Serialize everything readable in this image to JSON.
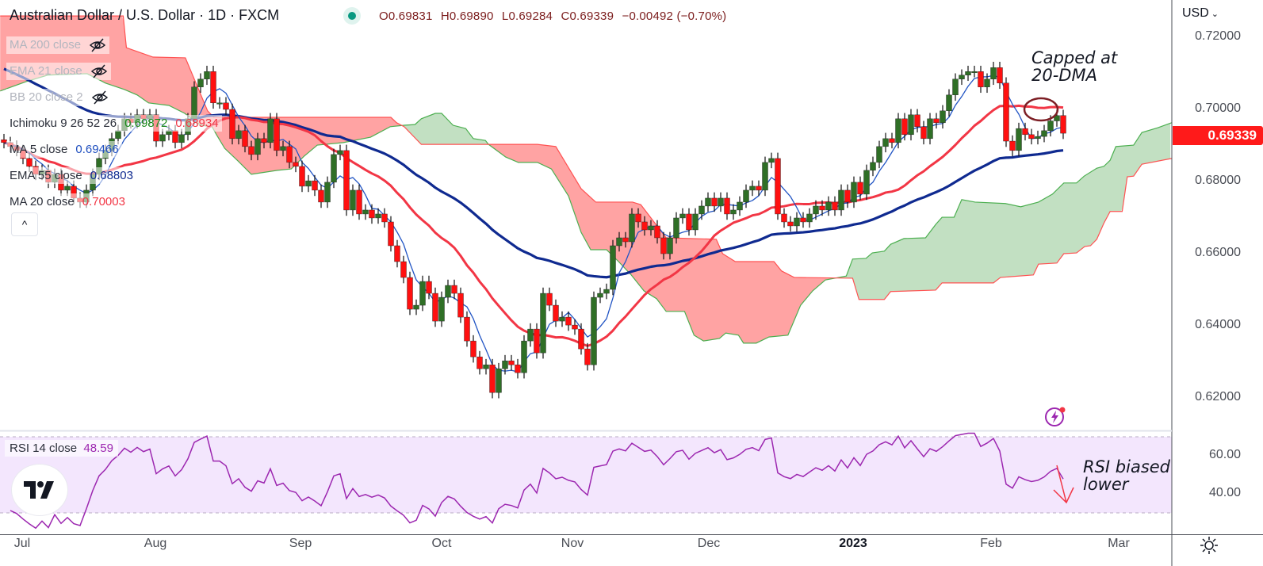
{
  "header": {
    "symbol_title": "Australian Dollar / U.S. Dollar · 1D · FXCM",
    "ohlc": [
      {
        "label": "O",
        "value": "0.69831"
      },
      {
        "label": "H",
        "value": "0.69890"
      },
      {
        "label": "L",
        "value": "0.69284"
      },
      {
        "label": "C",
        "value": "0.69339"
      }
    ],
    "change": "−0.00492 (−0.70%)"
  },
  "legend": {
    "hidden": [
      {
        "label": "MA 200 close",
        "icon": "eye-off-icon"
      },
      {
        "label": "EMA 21 close",
        "icon": "eye-off-icon"
      },
      {
        "label": "BB 20 close 2",
        "icon": "eye-off-icon"
      }
    ],
    "ichimoku": {
      "label": "Ichimoku 9 26 52 26",
      "value1": "0.69872",
      "value2": "0.68934"
    },
    "ma5": {
      "label": "MA 5 close",
      "value": "0.69466"
    },
    "ema55": {
      "label": "EMA 55 close",
      "value": "0.68803"
    },
    "ma20": {
      "label": "MA 20 close",
      "value": "0.70003"
    },
    "collapse": "^"
  },
  "price_axis": {
    "currency": "USD",
    "ticks": [
      "0.72000",
      "0.70000",
      "0.68000",
      "0.66000",
      "0.64000",
      "0.62000"
    ],
    "last_price": "0.69339"
  },
  "rsi": {
    "label": "RSI 14 close",
    "value": "48.59",
    "ticks": [
      "60.00",
      "40.00"
    ]
  },
  "time_axis": [
    "Jul",
    "Aug",
    "Sep",
    "Oct",
    "Nov",
    "Dec",
    "2023",
    "Feb",
    "Mar"
  ],
  "annotations": {
    "capped": [
      "Capped at",
      "20-DMA"
    ],
    "rsi_note": [
      "RSI biased",
      "lower"
    ]
  },
  "colors": {
    "up": "#2f6f26",
    "down": "#ff1010",
    "ma5": "#2255c4",
    "ma20": "#f23645",
    "ema55": "#0f2a90",
    "rsi": "#9c27b0",
    "cloud_green": "#c2e0c2",
    "cloud_red": "#ffa3a3",
    "span_a": "#4caf50",
    "span_b": "#ff5252"
  },
  "chart_data": {
    "type": "candlestick",
    "title": "Australian Dollar / U.S. Dollar · 1D · FXCM",
    "ylim": [
      0.611,
      0.7303
    ],
    "yticks": [
      0.72,
      0.7,
      0.68,
      0.66,
      0.64,
      0.62
    ],
    "x_labels": [
      "Jul",
      "Aug",
      "Sep",
      "Oct",
      "Nov",
      "Dec",
      "2023",
      "Feb",
      "Mar"
    ],
    "ema55_seed": 0.712,
    "closes": [
      0.6908,
      0.6897,
      0.6886,
      0.6864,
      0.6842,
      0.682,
      0.6831,
      0.6798,
      0.682,
      0.6776,
      0.6787,
      0.6754,
      0.6743,
      0.6776,
      0.682,
      0.6864,
      0.6886,
      0.6919,
      0.6941,
      0.6974,
      0.6963,
      0.6985,
      0.6974,
      0.6985,
      0.6912,
      0.693,
      0.6941,
      0.6908,
      0.693,
      0.6974,
      0.7062,
      0.7084,
      0.7105,
      0.7018,
      0.7018,
      0.7,
      0.6919,
      0.6941,
      0.6897,
      0.6875,
      0.6919,
      0.6908,
      0.6974,
      0.6886,
      0.6897,
      0.6853,
      0.6842,
      0.6787,
      0.6802,
      0.6776,
      0.6743,
      0.6798,
      0.6875,
      0.6886,
      0.6721,
      0.6776,
      0.671,
      0.6721,
      0.6699,
      0.671,
      0.6688,
      0.6622,
      0.6578,
      0.6534,
      0.6446,
      0.6457,
      0.6523,
      0.649,
      0.6413,
      0.6479,
      0.6512,
      0.649,
      0.6424,
      0.6358,
      0.6314,
      0.6281,
      0.6292,
      0.6215,
      0.6281,
      0.6303,
      0.6292,
      0.627,
      0.6358,
      0.6391,
      0.6325,
      0.649,
      0.6457,
      0.6413,
      0.6424,
      0.6402,
      0.6391,
      0.6336,
      0.6292,
      0.6479,
      0.649,
      0.6501,
      0.6622,
      0.6644,
      0.6633,
      0.671,
      0.6688,
      0.6666,
      0.6677,
      0.6644,
      0.66,
      0.6644,
      0.6699,
      0.671,
      0.6666,
      0.671,
      0.6732,
      0.6754,
      0.6732,
      0.6754,
      0.671,
      0.6721,
      0.6743,
      0.6776,
      0.6787,
      0.6776,
      0.6853,
      0.6864,
      0.671,
      0.6688,
      0.6677,
      0.6699,
      0.6688,
      0.671,
      0.6732,
      0.6721,
      0.6743,
      0.6721,
      0.6776,
      0.6743,
      0.6798,
      0.6765,
      0.6831,
      0.6853,
      0.6897,
      0.6919,
      0.6908,
      0.6974,
      0.693,
      0.6985,
      0.6952,
      0.6919,
      0.6974,
      0.6963,
      0.6996,
      0.704,
      0.7084,
      0.7095,
      0.7105,
      0.7105,
      0.7062,
      0.7084,
      0.7116,
      0.7073,
      0.6912,
      0.6886,
      0.6947,
      0.693,
      0.6919,
      0.6925,
      0.6941,
      0.6968,
      0.6983,
      0.69339
    ],
    "ichimoku_span_a": [
      [
        -0.6,
        0.7051
      ],
      [
        3.5,
        0.7077
      ],
      [
        6.9,
        0.7095
      ],
      [
        13.1,
        0.7099
      ],
      [
        16,
        0.7073
      ],
      [
        19,
        0.7055
      ],
      [
        21,
        0.704
      ],
      [
        22.8,
        0.7018
      ],
      [
        26,
        0.7011
      ],
      [
        28.5,
        0.6989
      ],
      [
        31,
        0.6956
      ],
      [
        32.8,
        0.6952
      ],
      [
        33.5,
        0.693
      ],
      [
        34.8,
        0.6892
      ],
      [
        36.9,
        0.6857
      ],
      [
        39,
        0.682
      ],
      [
        43.1,
        0.6831
      ],
      [
        45.3,
        0.6835
      ],
      [
        47.3,
        0.687
      ],
      [
        49.4,
        0.6901
      ],
      [
        53.5,
        0.6908
      ],
      [
        57.8,
        0.6923
      ],
      [
        60.9,
        0.6952
      ],
      [
        63.1,
        0.6956
      ],
      [
        64.8,
        0.6958
      ],
      [
        65.8,
        0.6974
      ],
      [
        68,
        0.6989
      ],
      [
        69,
        0.6989
      ],
      [
        70.8,
        0.6956
      ],
      [
        72.8,
        0.6947
      ],
      [
        74,
        0.6919
      ],
      [
        75.9,
        0.6914
      ],
      [
        76.4,
        0.6903
      ],
      [
        79.1,
        0.6868
      ],
      [
        81.1,
        0.6853
      ],
      [
        84.1,
        0.6853
      ],
      [
        86.3,
        0.6835
      ],
      [
        89,
        0.676
      ],
      [
        91,
        0.6659
      ],
      [
        92.5,
        0.6611
      ],
      [
        95,
        0.6611
      ],
      [
        96.9,
        0.6578
      ],
      [
        98.9,
        0.6541
      ],
      [
        100.9,
        0.6497
      ],
      [
        102.9,
        0.6475
      ],
      [
        104.4,
        0.644
      ],
      [
        107.3,
        0.644
      ],
      [
        108.8,
        0.6374
      ],
      [
        110.3,
        0.6358
      ],
      [
        112.8,
        0.6365
      ],
      [
        113.8,
        0.638
      ],
      [
        115.8,
        0.6374
      ],
      [
        116.6,
        0.6352
      ],
      [
        118.6,
        0.6352
      ],
      [
        120.6,
        0.6369
      ],
      [
        123.6,
        0.6374
      ],
      [
        125.6,
        0.6457
      ],
      [
        127.5,
        0.6497
      ],
      [
        129.5,
        0.6527
      ],
      [
        132.8,
        0.6538
      ],
      [
        133.8,
        0.6585
      ],
      [
        135.9,
        0.6587
      ],
      [
        136.9,
        0.6602
      ],
      [
        138.8,
        0.6607
      ],
      [
        139.8,
        0.6626
      ],
      [
        141.9,
        0.6642
      ],
      [
        145.3,
        0.6644
      ],
      [
        146.9,
        0.6681
      ],
      [
        147.9,
        0.6701
      ],
      [
        149.8,
        0.6701
      ],
      [
        151,
        0.675
      ],
      [
        153.1,
        0.6743
      ],
      [
        157.9,
        0.6739
      ],
      [
        160.3,
        0.673
      ],
      [
        163.1,
        0.6743
      ],
      [
        165.3,
        0.6765
      ],
      [
        167.1,
        0.6796
      ],
      [
        169.1,
        0.6796
      ],
      [
        170.3,
        0.6815
      ],
      [
        172.3,
        0.6837
      ],
      [
        173.4,
        0.6842
      ],
      [
        174.4,
        0.6859
      ],
      [
        175.3,
        0.6897
      ],
      [
        178.1,
        0.6901
      ],
      [
        179.4,
        0.6936
      ],
      [
        181.9,
        0.6949
      ],
      [
        184.1,
        0.6963
      ]
    ],
    "ichimoku_span_b": [
      [
        -0.6,
        0.7259
      ],
      [
        18.8,
        0.7259
      ],
      [
        19.3,
        0.7171
      ],
      [
        23.5,
        0.7145
      ],
      [
        28.6,
        0.7143
      ],
      [
        32.1,
        0.6996
      ],
      [
        33.1,
        0.6978
      ],
      [
        61,
        0.6978
      ],
      [
        61.9,
        0.6963
      ],
      [
        63.1,
        0.6952
      ],
      [
        65.8,
        0.6903
      ],
      [
        84.1,
        0.6903
      ],
      [
        87,
        0.6897
      ],
      [
        91,
        0.678
      ],
      [
        93.3,
        0.6743
      ],
      [
        99.1,
        0.6743
      ],
      [
        100.4,
        0.6736
      ],
      [
        104.4,
        0.6644
      ],
      [
        112.3,
        0.664
      ],
      [
        113.3,
        0.66
      ],
      [
        115.3,
        0.6578
      ],
      [
        121.4,
        0.6578
      ],
      [
        122.6,
        0.6552
      ],
      [
        124.6,
        0.6534
      ],
      [
        133.8,
        0.6532
      ],
      [
        134.8,
        0.6473
      ],
      [
        138.8,
        0.6473
      ],
      [
        139.8,
        0.6495
      ],
      [
        146.9,
        0.6499
      ],
      [
        147.9,
        0.6519
      ],
      [
        156,
        0.6519
      ],
      [
        157.1,
        0.6534
      ],
      [
        162.3,
        0.6541
      ],
      [
        163.1,
        0.6571
      ],
      [
        166,
        0.6574
      ],
      [
        167.1,
        0.66
      ],
      [
        169.1,
        0.6602
      ],
      [
        170.4,
        0.662
      ],
      [
        171.3,
        0.6622
      ],
      [
        172.3,
        0.664
      ],
      [
        173.4,
        0.6684
      ],
      [
        174.4,
        0.6717
      ],
      [
        176.3,
        0.6717
      ],
      [
        177.1,
        0.6813
      ],
      [
        178.1,
        0.6815
      ],
      [
        179.4,
        0.6848
      ],
      [
        184.1,
        0.6864
      ]
    ],
    "rsi_ylim": [
      26.3,
      82
    ],
    "rsi_bands": [
      70,
      30
    ]
  }
}
